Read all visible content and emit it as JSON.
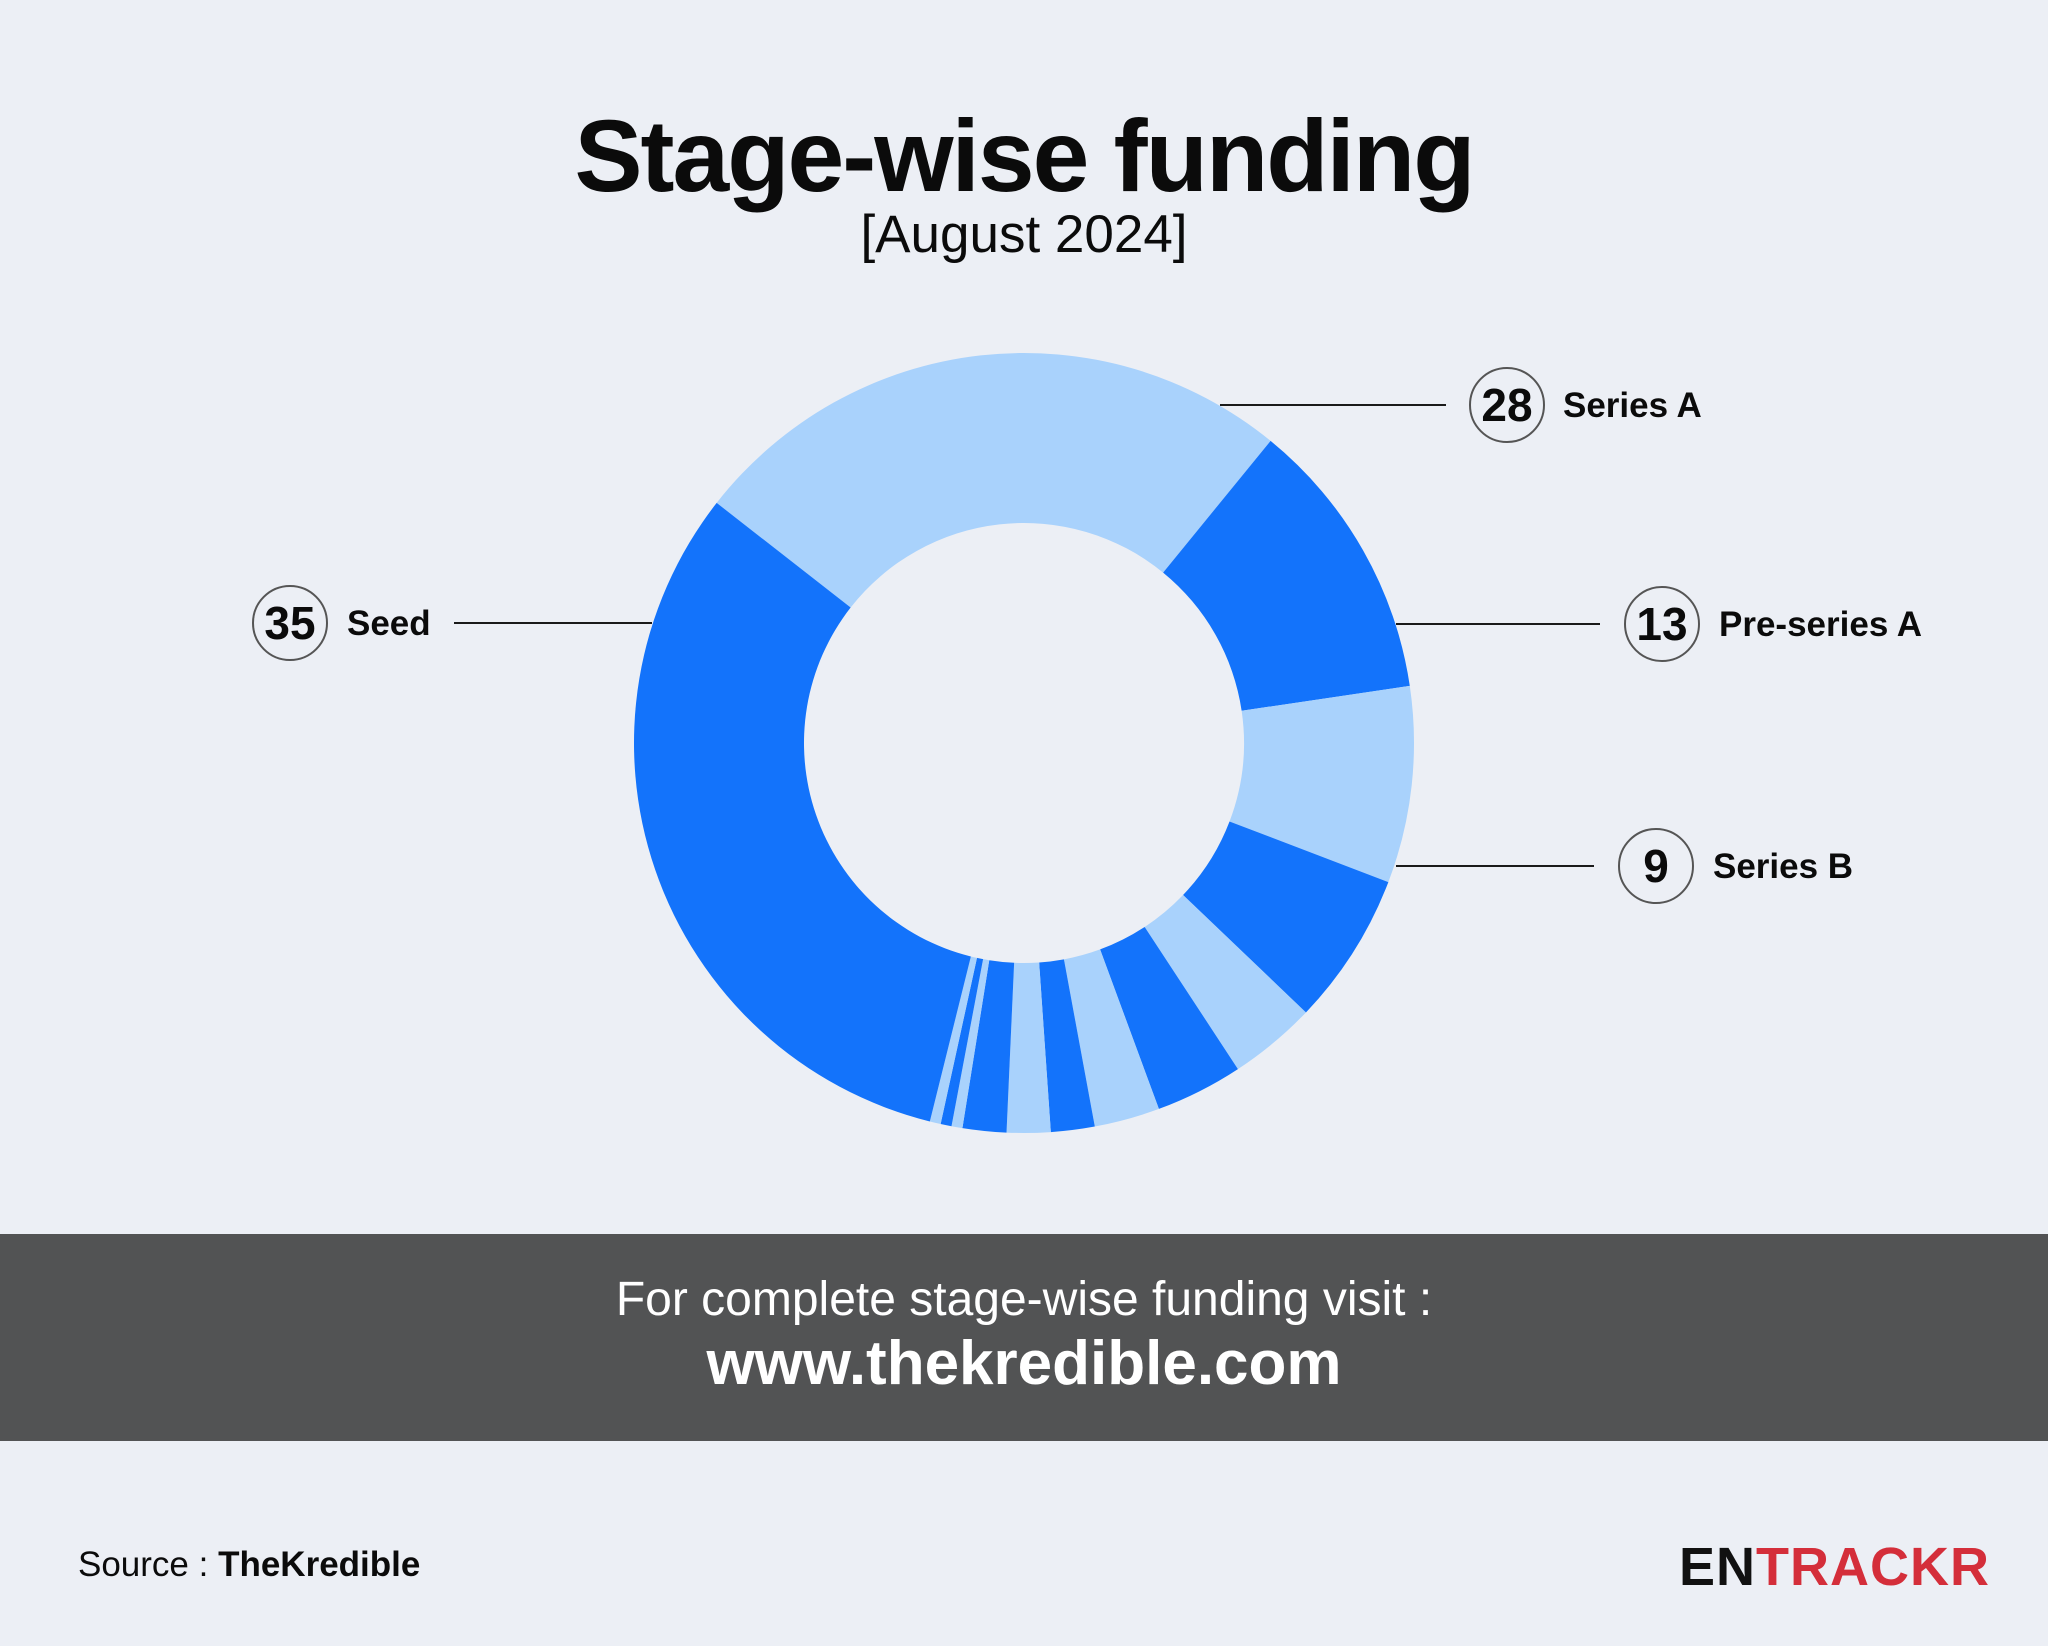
{
  "title": "Stage-wise funding",
  "subtitle": "[August 2024]",
  "banner": {
    "line1": "For complete stage-wise funding visit :",
    "line2": "www.thekredible.com"
  },
  "source": {
    "label": "Source : ",
    "name": "TheKredible"
  },
  "logo": {
    "part1": "EN",
    "part2": "TRACKR"
  },
  "colors": {
    "dark_blue": "#1373fb",
    "light_blue": "#a9d2fc",
    "background": "#eceff5",
    "banner": "#525354",
    "logo_red": "#d42e3a"
  },
  "chart_data": {
    "type": "pie",
    "subtype": "donut",
    "title": "Stage-wise funding",
    "subtitle": "[August 2024]",
    "labeled_slices": [
      {
        "name": "Series A",
        "value": 28
      },
      {
        "name": "Pre-series A",
        "value": 13
      },
      {
        "name": "Series B",
        "value": 9
      },
      {
        "name": "Seed",
        "value": 35
      }
    ],
    "slices": [
      {
        "value": 28,
        "color": "light"
      },
      {
        "value": 13,
        "color": "dark"
      },
      {
        "value": 9,
        "color": "light"
      },
      {
        "value": 7,
        "color": "dark"
      },
      {
        "value": 4,
        "color": "light"
      },
      {
        "value": 4,
        "color": "dark"
      },
      {
        "value": 3,
        "color": "light"
      },
      {
        "value": 2,
        "color": "dark"
      },
      {
        "value": 2,
        "color": "light"
      },
      {
        "value": 2,
        "color": "dark"
      },
      {
        "value": 0.5,
        "color": "light"
      },
      {
        "value": 0.5,
        "color": "dark"
      },
      {
        "value": 0.5,
        "color": "light"
      },
      {
        "value": 35,
        "color": "dark"
      }
    ]
  }
}
